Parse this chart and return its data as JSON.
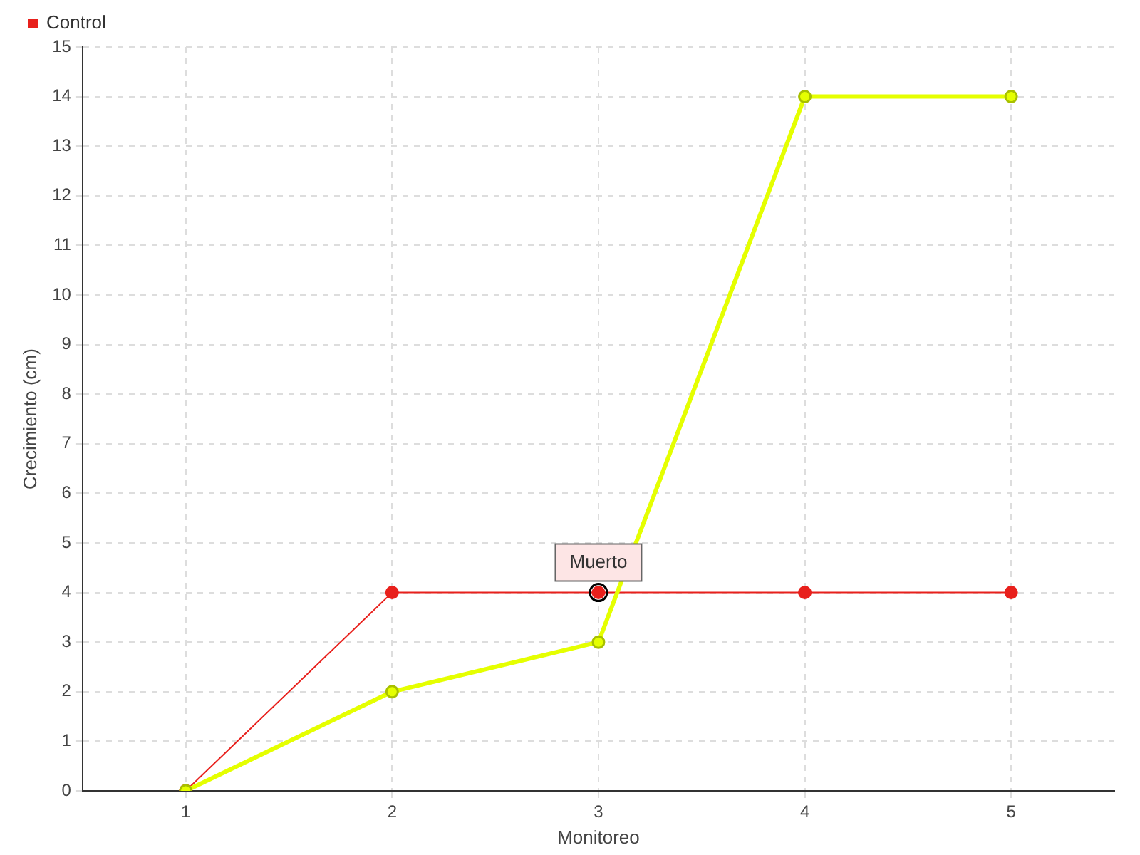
{
  "chart_data": {
    "type": "line",
    "xlabel": "Monitoreo",
    "ylabel": "Crecimiento (cm)",
    "categories": [
      "1",
      "2",
      "3",
      "4",
      "5"
    ],
    "series": [
      {
        "color": "#e5ff00",
        "values": [
          0,
          2,
          3,
          14,
          14
        ]
      },
      {
        "name": "Control",
        "color": "#e8201c",
        "values": [
          0,
          4,
          4,
          4,
          4
        ]
      }
    ],
    "ylim": [
      0,
      15
    ],
    "yticks": [
      0,
      1,
      2,
      3,
      4,
      5,
      6,
      7,
      8,
      9,
      10,
      11,
      12,
      13,
      14,
      15
    ],
    "grid": true,
    "legend": "top left",
    "marker": "circle",
    "line_style": "solid",
    "annotations": [
      {
        "text": "Muerto",
        "x": "3",
        "y": 4
      }
    ]
  }
}
